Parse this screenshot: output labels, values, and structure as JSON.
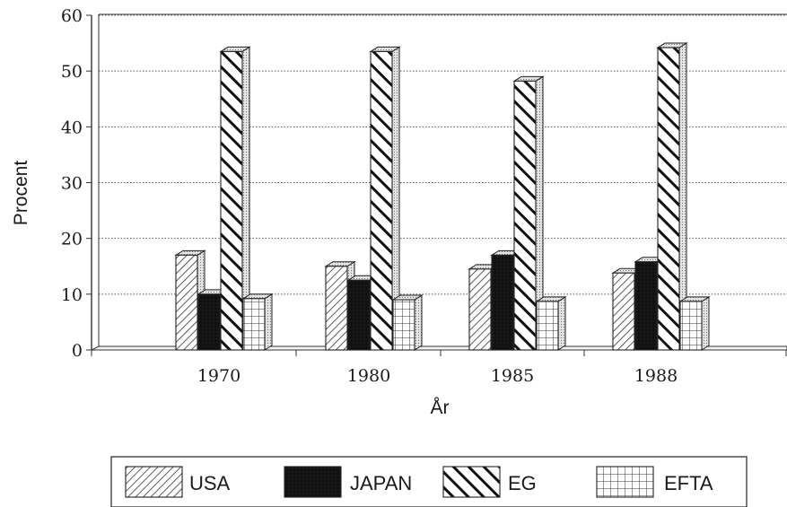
{
  "chart_data": {
    "type": "bar",
    "title": "",
    "xlabel": "År",
    "ylabel": "Procent",
    "categories": [
      "1970",
      "1980",
      "1985",
      "1988"
    ],
    "ylim": [
      0,
      60
    ],
    "yticks": [
      "0",
      "10",
      "20",
      "30",
      "40",
      "50",
      "60"
    ],
    "grid": true,
    "legend_position": "bottom",
    "series": [
      {
        "name": "USA",
        "values": [
          17,
          15,
          14.5,
          13.8
        ],
        "pattern": "diagonal-light"
      },
      {
        "name": "JAPAN",
        "values": [
          10,
          12.5,
          17,
          15.8
        ],
        "pattern": "solid"
      },
      {
        "name": "EG",
        "values": [
          53.5,
          53.5,
          48.2,
          54.2
        ],
        "pattern": "diagonal-bold"
      },
      {
        "name": "EFTA",
        "values": [
          9.2,
          9,
          8.7,
          8.7
        ],
        "pattern": "grid"
      }
    ],
    "colors": {
      "ink": "#1a1a1a",
      "side": "#d8d8d8",
      "top": "#e6e6e6"
    }
  }
}
